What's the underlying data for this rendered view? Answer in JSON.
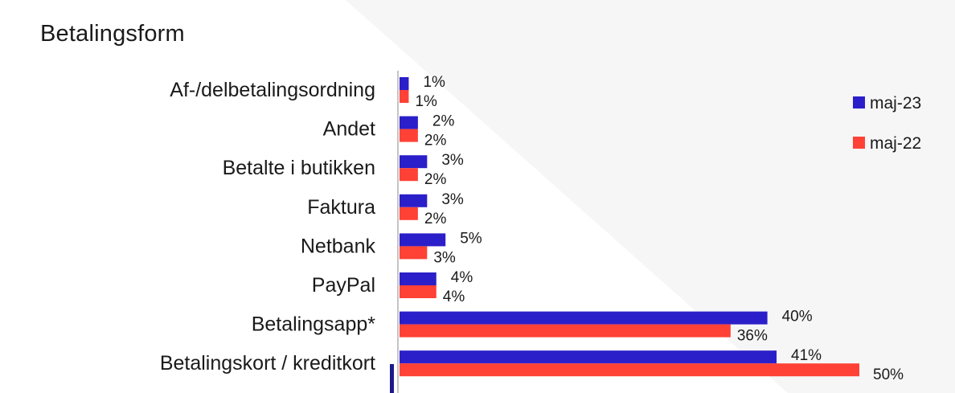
{
  "chart_data": {
    "type": "bar",
    "orientation": "horizontal",
    "title": "Betalingsform",
    "categories": [
      "Af-/delbetalingsordning",
      "Andet",
      "Betalte i butikken",
      "Faktura",
      "Netbank",
      "PayPal",
      "Betalingsapp*",
      "Betalingskort / kreditkort"
    ],
    "series": [
      {
        "name": "maj-23",
        "color": "#2b1fc9",
        "values": [
          1,
          2,
          3,
          3,
          5,
          4,
          40,
          41
        ],
        "labels": [
          "1%",
          "2%",
          "3%",
          "3%",
          "5%",
          "4%",
          "40%",
          "41%"
        ]
      },
      {
        "name": "maj-22",
        "color": "#ff4136",
        "values": [
          1,
          2,
          2,
          2,
          3,
          4,
          36,
          50
        ],
        "labels": [
          "1%",
          "2%",
          "2%",
          "2%",
          "3%",
          "4%",
          "36%",
          "50%"
        ]
      }
    ],
    "xlim": [
      0,
      50
    ],
    "grid": false,
    "legend_position": "top-right",
    "value_unit": "%"
  }
}
